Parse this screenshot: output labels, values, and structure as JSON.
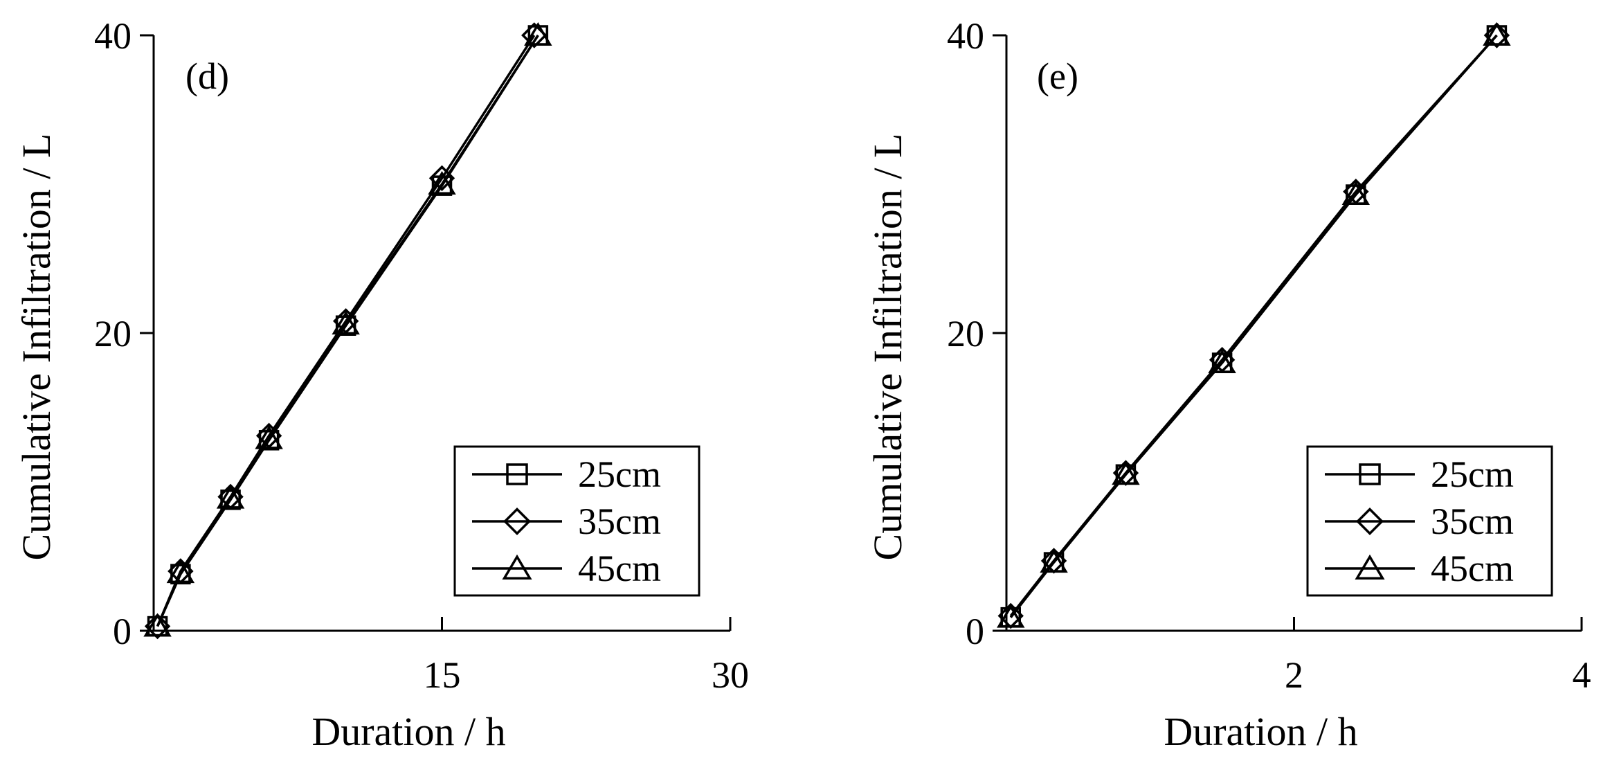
{
  "chart_data": [
    {
      "type": "line",
      "panel_label": "(d)",
      "xlabel": "Duration / h",
      "ylabel": "Cumulative Infiltration / L",
      "xlim": [
        0,
        30
      ],
      "ylim": [
        0,
        40
      ],
      "xticks": [
        15,
        30
      ],
      "yticks": [
        0,
        20,
        40
      ],
      "legend_position": "bottom-right",
      "series": [
        {
          "name": "25cm",
          "marker": "square",
          "x": [
            0.2,
            1.4,
            4.0,
            6.0,
            10.0,
            15.0,
            20.0
          ],
          "y": [
            0.3,
            3.8,
            8.8,
            12.8,
            20.5,
            29.9,
            40.0
          ]
        },
        {
          "name": "35cm",
          "marker": "diamond",
          "x": [
            0.2,
            1.4,
            4.0,
            6.0,
            10.0,
            15.0,
            19.8
          ],
          "y": [
            0.3,
            4.0,
            9.0,
            13.1,
            20.8,
            30.4,
            40.0
          ]
        },
        {
          "name": "45cm",
          "marker": "triangle",
          "x": [
            0.2,
            1.4,
            4.0,
            6.0,
            10.0,
            15.0,
            20.0
          ],
          "y": [
            0.3,
            3.9,
            8.9,
            12.9,
            20.6,
            30.0,
            40.0
          ]
        }
      ]
    },
    {
      "type": "line",
      "panel_label": "(e)",
      "xlabel": "Duration / h",
      "ylabel": "Cumulative Infiltration / L",
      "xlim": [
        0,
        4
      ],
      "ylim": [
        0,
        40
      ],
      "xticks": [
        2,
        4
      ],
      "yticks": [
        0,
        20,
        40
      ],
      "legend_position": "bottom-right",
      "series": [
        {
          "name": "25cm",
          "marker": "square",
          "x": [
            0.03,
            0.33,
            0.83,
            1.5,
            2.43,
            3.41
          ],
          "y": [
            0.9,
            4.6,
            10.5,
            18.0,
            29.3,
            40.0
          ]
        },
        {
          "name": "35cm",
          "marker": "diamond",
          "x": [
            0.03,
            0.33,
            0.83,
            1.5,
            2.43,
            3.41
          ],
          "y": [
            1.0,
            4.7,
            10.6,
            18.2,
            29.5,
            40.0
          ]
        },
        {
          "name": "45cm",
          "marker": "triangle",
          "x": [
            0.03,
            0.33,
            0.83,
            1.5,
            2.43,
            3.41
          ],
          "y": [
            0.9,
            4.6,
            10.5,
            18.0,
            29.3,
            40.0
          ]
        }
      ]
    }
  ]
}
